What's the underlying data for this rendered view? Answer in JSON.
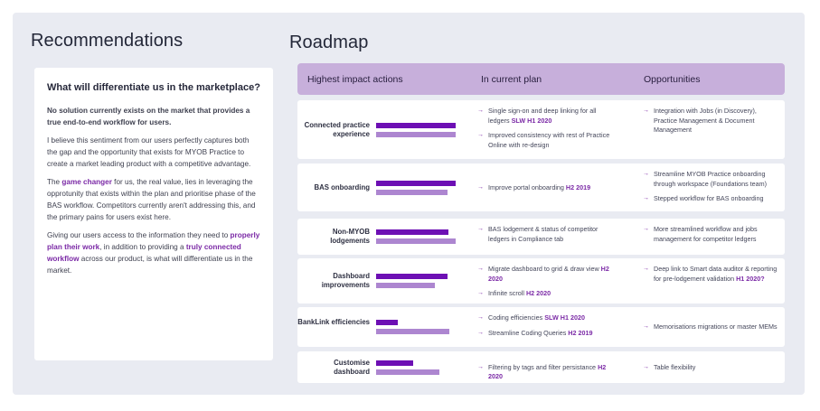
{
  "recommendations": {
    "title": "Recommendations",
    "card_title": "What will differentiate us in the marketplace?",
    "para1": "No solution currently exists on the market that provides a true end-to-end workflow for users.",
    "para2": "I believe this sentiment from our users perfectly captures both the gap and the opportunity that exists for MYOB Practice to create a market leading product with a competitive advantage.",
    "para3_a": "The ",
    "para3_hl": "game changer",
    "para3_b": " for us, the real value, lies in leveraging the opprotunity that exists within the plan and prioritise phase of the BAS workflow. Competitors currently aren't addressing this, and the primary pains for users exist here.",
    "para4_a": "Giving our users access to the information they need to ",
    "para4_hl1": "properly plan their work",
    "para4_b": ", in addition to providing a ",
    "para4_hl2": "truly connected workflow",
    "para4_c": " across our product, is what will differentiate us in the market."
  },
  "roadmap": {
    "title": "Roadmap",
    "col1": "Highest impact actions",
    "col2": "In current plan",
    "col3": "Opportunities",
    "rows": [
      {
        "label": "Connected practice experience",
        "bars": [
          0.86,
          0.86
        ],
        "current": [
          {
            "text": "Single sign-on and deep linking for all ledgers",
            "tag": "SLW H1 2020"
          },
          {
            "text": "Improved consistency with rest of Practice Online with re-design",
            "tag": ""
          }
        ],
        "opps": [
          {
            "text": "Integration with Jobs (in Discovery), Practice Management & Document Management",
            "tag": ""
          }
        ]
      },
      {
        "label": "BAS onboarding",
        "bars": [
          0.86,
          0.77
        ],
        "current": [
          {
            "text": "Improve portal onboarding",
            "tag": "H2 2019"
          }
        ],
        "opps": [
          {
            "text": "Streamline MYOB Practice onboarding through workspace (Foundations team)",
            "tag": ""
          },
          {
            "text": "Stepped workflow for BAS onboarding",
            "tag": ""
          }
        ]
      },
      {
        "label": "Non-MYOB lodgements",
        "bars": [
          0.78,
          0.86
        ],
        "current": [
          {
            "text": "BAS lodgement & status of competitor ledgers in Compliance tab",
            "tag": ""
          }
        ],
        "opps": [
          {
            "text": "More streamlined workflow and jobs management for competitor ledgers",
            "tag": ""
          }
        ]
      },
      {
        "label": "Dashboard improvements",
        "bars": [
          0.77,
          0.64
        ],
        "current": [
          {
            "text": "Migrate dashboard to grid & draw view",
            "tag": "H2 2020"
          },
          {
            "text": "Infinite scroll",
            "tag": "H2 2020"
          }
        ],
        "opps": [
          {
            "text": "Deep link to Smart data auditor & reporting for pre-lodgement validation",
            "tag": "H1 2020?"
          }
        ]
      },
      {
        "label": "BankLink efficiencies",
        "bars": [
          0.24,
          0.79
        ],
        "current": [
          {
            "text": "Coding efficiencies",
            "tag": "SLW H1 2020"
          },
          {
            "text": "Streamline Coding Queries",
            "tag": "H2 2019"
          }
        ],
        "opps": [
          {
            "text": "Memorisations migrations or master MEMs",
            "tag": ""
          }
        ]
      },
      {
        "label": "Customise dashboard",
        "bars": [
          0.4,
          0.69
        ],
        "current": [
          {
            "text": "Filtering by tags and filter persistance",
            "tag": "H2 2020"
          }
        ],
        "opps": [
          {
            "text": "Table flexibility",
            "tag": ""
          }
        ]
      }
    ]
  },
  "colors": {
    "bar_dark": "#6d0fb4",
    "bar_light": "#ad86d0",
    "header_bg": "#c7afdb",
    "highlight": "#7b2aa6"
  }
}
